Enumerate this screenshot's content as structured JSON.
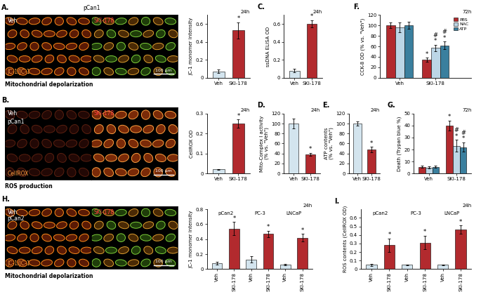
{
  "images": [
    {
      "panel": "A.",
      "header": "pCan1",
      "left_labels": [
        "Veh"
      ],
      "right_labels": [
        "SKI-178"
      ],
      "stain": "JC-1/JC-1",
      "scale_bar": "100 μm",
      "caption": "Mitochondrial depolarization"
    },
    {
      "panel": "B.",
      "left_labels": [
        "Veh",
        "pCan1"
      ],
      "right_labels": [
        "SKI-178"
      ],
      "stain": "CellROX",
      "scale_bar": "100 μm",
      "caption": "ROS production"
    },
    {
      "panel": "H.",
      "left_labels": [
        "Veh",
        "pCan2"
      ],
      "right_labels": [
        "SKI-178"
      ],
      "stain": "JC-1/JC-1",
      "scale_bar": "100 μm",
      "caption": "Mitochondrial depolarization"
    }
  ],
  "chart_data": [
    {
      "type": "bar",
      "ylabel": "JC-1 monomer intensity",
      "time": "24h",
      "categories": [
        "Veh",
        "SKI-178"
      ],
      "values": [
        0.07,
        0.53
      ],
      "errors": [
        0.02,
        0.09
      ],
      "significance": [
        null,
        [
          "*"
        ]
      ],
      "colors": [
        "#d3e4ee",
        "#b22a2e"
      ],
      "ylim": [
        0,
        0.7
      ],
      "yticks": [
        0,
        0.2,
        0.4,
        0.6
      ]
    },
    {
      "type": "bar",
      "ylabel": "CellROX OD",
      "time": "24h",
      "categories": [
        "Veh",
        "SKI-178"
      ],
      "values": [
        0.02,
        0.25
      ],
      "errors": [
        0.002,
        0.02
      ],
      "significance": [
        null,
        [
          "*"
        ]
      ],
      "colors": [
        "#d3e4ee",
        "#b22a2e"
      ],
      "ylim": [
        0,
        0.3
      ],
      "yticks": [
        0,
        0.1,
        0.2,
        0.3
      ]
    },
    {
      "type": "bar",
      "panel": "C.",
      "ylabel": "ssDNA ELISA OD",
      "time": "24h",
      "categories": [
        "Veh",
        "SKI-178"
      ],
      "values": [
        0.08,
        0.6
      ],
      "errors": [
        0.02,
        0.04
      ],
      "significance": [
        null,
        [
          "*"
        ]
      ],
      "colors": [
        "#d3e4ee",
        "#b22a2e"
      ],
      "ylim": [
        0,
        0.7
      ],
      "yticks": [
        0,
        0.2,
        0.4,
        0.6
      ]
    },
    {
      "type": "bar",
      "panel": "D.",
      "ylabel": "Mito-Complex I activity\n(% vs. \"Veh\")",
      "time": "24h",
      "categories": [
        "Veh",
        "SKI-178"
      ],
      "values": [
        100,
        38
      ],
      "errors": [
        10,
        3
      ],
      "significance": [
        null,
        [
          "*"
        ]
      ],
      "colors": [
        "#d3e4ee",
        "#b22a2e"
      ],
      "ylim": [
        0,
        120
      ],
      "yticks": [
        0,
        20,
        40,
        60,
        80,
        100,
        120
      ]
    },
    {
      "type": "bar",
      "panel": "E.",
      "ylabel": "ATP contents\n(% vs. \"Veh\")",
      "time": "24h",
      "categories": [
        "Veh",
        "SKI-178"
      ],
      "values": [
        100,
        48
      ],
      "errors": [
        4,
        5
      ],
      "significance": [
        null,
        [
          "*"
        ]
      ],
      "colors": [
        "#d3e4ee",
        "#b22a2e"
      ],
      "ylim": [
        0,
        120
      ],
      "yticks": [
        0,
        20,
        40,
        60,
        80,
        100,
        120
      ]
    },
    {
      "type": "bar",
      "panel": "F.",
      "ylabel": "CCK-8 OD (% vs. \"Veh\")",
      "time": "72h",
      "categories": [
        "Veh",
        "SKI-178"
      ],
      "legend": "upper right",
      "series": [
        {
          "name": "PBS",
          "color": "#b22a2e",
          "values": [
            100,
            34
          ],
          "errors": [
            5,
            4
          ],
          "significance": [
            null,
            [
              "*"
            ]
          ]
        },
        {
          "name": "NAC",
          "color": "#bcd6e6",
          "values": [
            96,
            57
          ],
          "errors": [
            9,
            6
          ],
          "significance": [
            null,
            [
              "#",
              "*"
            ]
          ]
        },
        {
          "name": "ATP",
          "color": "#3a7f9e",
          "values": [
            100,
            62
          ],
          "errors": [
            7,
            7
          ],
          "significance": [
            null,
            [
              "#",
              "*"
            ]
          ]
        }
      ],
      "ylim": [
        0,
        120
      ],
      "yticks": [
        0,
        20,
        40,
        60,
        80,
        100,
        120
      ]
    },
    {
      "type": "bar",
      "panel": "G.",
      "ylabel": "Death (Trypan blue %)",
      "time": "72h",
      "categories": [
        "Veh",
        "SKI-178"
      ],
      "series": [
        {
          "color": "#b22a2e",
          "values": [
            5.5,
            40
          ],
          "errors": [
            1,
            4
          ],
          "significance": [
            null,
            [
              "*"
            ]
          ]
        },
        {
          "color": "#bcd6e6",
          "values": [
            5,
            23
          ],
          "errors": [
            1,
            5
          ],
          "significance": [
            null,
            [
              "#",
              "*"
            ]
          ]
        },
        {
          "color": "#3a7f9e",
          "values": [
            5.5,
            22
          ],
          "errors": [
            1,
            4
          ],
          "significance": [
            null,
            [
              "#",
              "*"
            ]
          ]
        }
      ],
      "ylim": [
        0,
        50
      ],
      "yticks": [
        0,
        10,
        20,
        30,
        40,
        50
      ]
    },
    {
      "type": "bar",
      "ylabel": "JC-1 monomer intensity",
      "time": "24h",
      "groups": [
        "pCan2",
        "PC-3",
        "LNCaP"
      ],
      "categories": [
        "Veh",
        "SKI-178",
        "Veh",
        "SKI-178",
        "Veh",
        "SKI-178"
      ],
      "values": [
        0.08,
        0.54,
        0.13,
        0.47,
        0.06,
        0.42
      ],
      "errors": [
        0.02,
        0.09,
        0.04,
        0.04,
        0.01,
        0.05
      ],
      "significance": [
        null,
        [
          "*"
        ],
        null,
        [
          "*"
        ],
        null,
        [
          "*"
        ]
      ],
      "colors": [
        "#d3e4ee",
        "#b22a2e",
        "#d3e4ee",
        "#b22a2e",
        "#d3e4ee",
        "#b22a2e"
      ],
      "ylim": [
        0,
        0.8
      ],
      "yticks": [
        0,
        0.2,
        0.4,
        0.6,
        0.8
      ]
    },
    {
      "type": "bar",
      "panel": "I.",
      "ylabel": "ROS contents (CellROX OD)",
      "time": "24h",
      "groups": [
        "pCan2",
        "PC-3",
        "LNCaP"
      ],
      "categories": [
        "Veh",
        "SKI-178",
        "Veh",
        "SKI-178",
        "Veh",
        "SKI-178"
      ],
      "values": [
        0.05,
        0.28,
        0.05,
        0.31,
        0.05,
        0.46
      ],
      "errors": [
        0.01,
        0.08,
        0.005,
        0.08,
        0.005,
        0.05
      ],
      "significance": [
        null,
        [
          "*"
        ],
        null,
        [
          "*"
        ],
        null,
        [
          "*"
        ]
      ],
      "colors": [
        "#d3e4ee",
        "#b22a2e",
        "#d3e4ee",
        "#b22a2e",
        "#d3e4ee",
        "#b22a2e"
      ],
      "ylim": [
        0,
        0.7
      ],
      "yticks": [
        0,
        0.1,
        0.2,
        0.3,
        0.4,
        0.5,
        0.6
      ]
    }
  ]
}
